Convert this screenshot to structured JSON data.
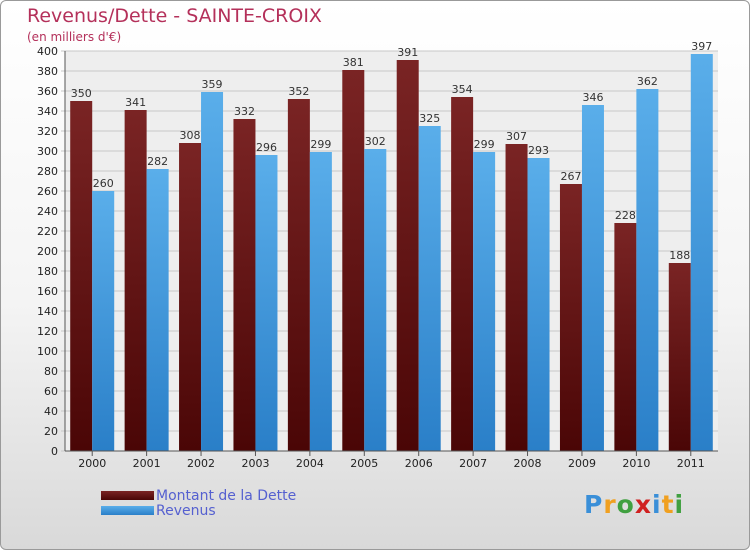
{
  "title": "Revenus/Dette - SAINTE-CROIX",
  "subtitle": "(en milliers d'€)",
  "chart_data": {
    "type": "bar",
    "title": "Revenus/Dette - SAINTE-CROIX",
    "subtitle": "(en milliers d'€)",
    "categories": [
      "2000",
      "2001",
      "2002",
      "2003",
      "2004",
      "2005",
      "2006",
      "2007",
      "2008",
      "2009",
      "2010",
      "2011"
    ],
    "series": [
      {
        "name": "Montant de la Dette",
        "color": "#6e1a1a",
        "values": [
          350,
          341,
          308,
          332,
          352,
          381,
          391,
          354,
          307,
          267,
          228,
          188
        ]
      },
      {
        "name": "Revenus",
        "color": "#3d9be3",
        "values": [
          260,
          282,
          359,
          296,
          299,
          302,
          325,
          299,
          293,
          346,
          362,
          397
        ]
      }
    ],
    "ylim": [
      0,
      400
    ],
    "yticks": [
      0,
      20,
      40,
      60,
      80,
      100,
      120,
      140,
      160,
      180,
      200,
      220,
      240,
      260,
      280,
      300,
      320,
      340,
      360,
      380,
      400
    ],
    "grid": true,
    "legend": "bottom-left"
  },
  "legend": {
    "items": [
      {
        "label": "Montant de la Dette",
        "color": "#6e1a1a"
      },
      {
        "label": "Revenus",
        "color": "#3d9be3"
      }
    ]
  },
  "logo": {
    "text": "Proxiti",
    "letters": [
      "P",
      "r",
      "o",
      "x",
      "i",
      "t",
      "i"
    ],
    "colors": [
      "#3a8fd8",
      "#f0a020",
      "#40a040",
      "#d02020",
      "#3a8fd8",
      "#f0a020",
      "#40a040"
    ]
  }
}
